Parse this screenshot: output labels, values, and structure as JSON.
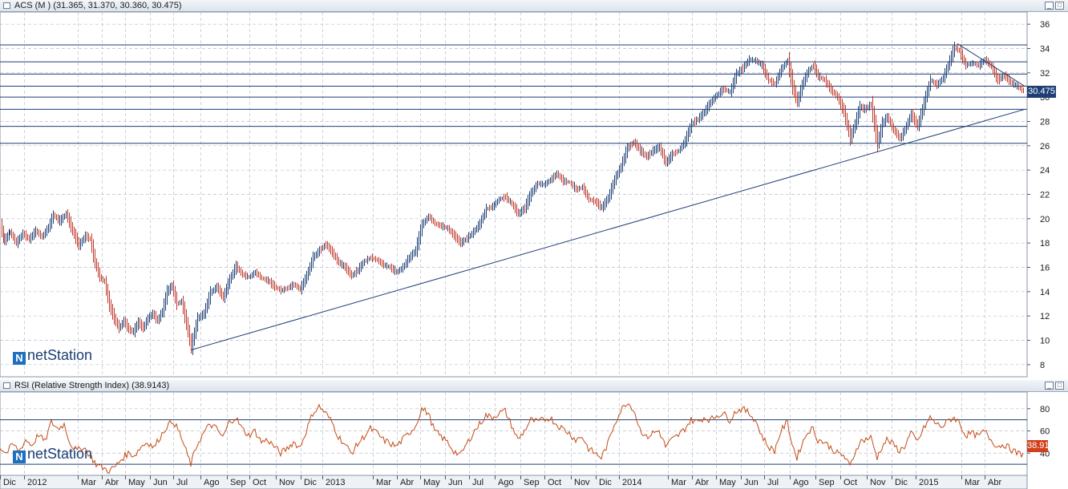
{
  "price_panel": {
    "title": "ACS (M ) (31.365, 31.370, 30.360, 30.475)",
    "last_value": "30.475"
  },
  "rsi_panel": {
    "title": "RSI (Relative Strength Index) (38.9143)",
    "last_value": "38.91"
  },
  "logo": {
    "icon": "N",
    "text": "netStation"
  },
  "window_buttons": {
    "minimize": "_",
    "maximize": "□"
  },
  "colors": {
    "price_up": "#1d3f75",
    "price_down": "#c0392b",
    "rsi_line": "#c44b15",
    "trendline": "#1d3f75",
    "grid": "#b8c0ca",
    "panel_title_bg": "#dbe3ec"
  },
  "chart_data": [
    {
      "type": "bar",
      "subtype": "ohlc",
      "series_name": "ACS",
      "y_ticks": [
        8,
        10,
        12,
        14,
        16,
        18,
        20,
        22,
        24,
        26,
        28,
        30,
        32,
        34,
        36
      ],
      "ylim": [
        7,
        37
      ],
      "grid": true,
      "x_ticks": [
        "Dic",
        "2012",
        "Mar",
        "Abr",
        "May",
        "Jun",
        "Jul",
        "Ago",
        "Sep",
        "Oct",
        "Nov",
        "Dic",
        "2013",
        "Mar",
        "Abr",
        "May",
        "Jun",
        "Jul",
        "Ago",
        "Sep",
        "Oct",
        "Nov",
        "Dic",
        "2014",
        "Mar",
        "Abr",
        "May",
        "Jun",
        "Jul",
        "Ago",
        "Sep",
        "Oct",
        "Nov",
        "Dic",
        "2015",
        "Mar",
        "Abr"
      ],
      "path_points": [
        [
          0,
          19.5
        ],
        [
          5,
          18.2
        ],
        [
          12,
          18.9
        ],
        [
          20,
          18.0
        ],
        [
          28,
          18.8
        ],
        [
          36,
          18.3
        ],
        [
          44,
          19.0
        ],
        [
          52,
          18.5
        ],
        [
          60,
          19.3
        ],
        [
          66,
          20.3
        ],
        [
          74,
          19.8
        ],
        [
          82,
          20.4
        ],
        [
          90,
          19.0
        ],
        [
          98,
          17.8
        ],
        [
          106,
          18.6
        ],
        [
          112,
          18.3
        ],
        [
          118,
          16.4
        ],
        [
          124,
          15.2
        ],
        [
          130,
          14.8
        ],
        [
          136,
          12.9
        ],
        [
          142,
          11.8
        ],
        [
          148,
          11.0
        ],
        [
          154,
          11.6
        ],
        [
          160,
          10.9
        ],
        [
          166,
          10.7
        ],
        [
          172,
          11.5
        ],
        [
          178,
          11.0
        ],
        [
          184,
          11.8
        ],
        [
          190,
          12.2
        ],
        [
          196,
          11.6
        ],
        [
          202,
          12.4
        ],
        [
          208,
          14.0
        ],
        [
          214,
          14.5
        ],
        [
          220,
          13.0
        ],
        [
          226,
          13.2
        ],
        [
          232,
          11.4
        ],
        [
          238,
          9.4
        ],
        [
          246,
          11.8
        ],
        [
          254,
          12.2
        ],
        [
          262,
          13.9
        ],
        [
          270,
          14.4
        ],
        [
          278,
          13.5
        ],
        [
          286,
          15.0
        ],
        [
          294,
          16.1
        ],
        [
          302,
          15.4
        ],
        [
          310,
          15.2
        ],
        [
          318,
          15.6
        ],
        [
          326,
          15.1
        ],
        [
          334,
          14.9
        ],
        [
          342,
          14.4
        ],
        [
          350,
          14.1
        ],
        [
          358,
          14.3
        ],
        [
          366,
          14.6
        ],
        [
          374,
          14.2
        ],
        [
          382,
          15.3
        ],
        [
          390,
          16.8
        ],
        [
          398,
          17.4
        ],
        [
          406,
          17.9
        ],
        [
          414,
          17.2
        ],
        [
          422,
          16.4
        ],
        [
          430,
          16.0
        ],
        [
          438,
          15.3
        ],
        [
          446,
          15.8
        ],
        [
          454,
          16.5
        ],
        [
          462,
          16.8
        ],
        [
          470,
          16.6
        ],
        [
          478,
          16.2
        ],
        [
          486,
          16.0
        ],
        [
          494,
          15.6
        ],
        [
          502,
          16.0
        ],
        [
          510,
          16.8
        ],
        [
          518,
          17.4
        ],
        [
          526,
          19.5
        ],
        [
          534,
          20.2
        ],
        [
          542,
          19.6
        ],
        [
          550,
          19.4
        ],
        [
          558,
          19.2
        ],
        [
          566,
          18.6
        ],
        [
          574,
          18.0
        ],
        [
          582,
          18.4
        ],
        [
          590,
          18.9
        ],
        [
          598,
          19.6
        ],
        [
          606,
          20.8
        ],
        [
          614,
          21.0
        ],
        [
          622,
          21.6
        ],
        [
          630,
          21.8
        ],
        [
          638,
          21.2
        ],
        [
          646,
          20.4
        ],
        [
          654,
          20.9
        ],
        [
          662,
          22.1
        ],
        [
          670,
          22.9
        ],
        [
          678,
          22.8
        ],
        [
          686,
          23.2
        ],
        [
          694,
          23.7
        ],
        [
          702,
          23.1
        ],
        [
          710,
          23.0
        ],
        [
          718,
          22.4
        ],
        [
          726,
          22.6
        ],
        [
          734,
          21.6
        ],
        [
          742,
          21.4
        ],
        [
          750,
          20.9
        ],
        [
          758,
          21.7
        ],
        [
          766,
          23.2
        ],
        [
          774,
          24.3
        ],
        [
          782,
          25.8
        ],
        [
          790,
          26.3
        ],
        [
          798,
          25.6
        ],
        [
          806,
          25.1
        ],
        [
          814,
          25.6
        ],
        [
          822,
          25.9
        ],
        [
          830,
          24.6
        ],
        [
          838,
          25.3
        ],
        [
          846,
          25.6
        ],
        [
          854,
          26.4
        ],
        [
          862,
          27.8
        ],
        [
          870,
          28.2
        ],
        [
          878,
          28.8
        ],
        [
          886,
          29.6
        ],
        [
          894,
          30.2
        ],
        [
          902,
          30.7
        ],
        [
          910,
          30.4
        ],
        [
          918,
          31.9
        ],
        [
          926,
          32.4
        ],
        [
          934,
          33.1
        ],
        [
          942,
          33.0
        ],
        [
          950,
          32.6
        ],
        [
          958,
          31.4
        ],
        [
          966,
          31.1
        ],
        [
          974,
          32.3
        ],
        [
          982,
          33.0
        ],
        [
          988,
          30.9
        ],
        [
          994,
          29.6
        ],
        [
          1000,
          31.0
        ],
        [
          1008,
          32.2
        ],
        [
          1014,
          32.6
        ],
        [
          1020,
          31.7
        ],
        [
          1028,
          31.4
        ],
        [
          1036,
          30.6
        ],
        [
          1044,
          30.0
        ],
        [
          1052,
          28.8
        ],
        [
          1060,
          26.6
        ],
        [
          1066,
          27.8
        ],
        [
          1072,
          29.2
        ],
        [
          1078,
          29.0
        ],
        [
          1086,
          29.4
        ],
        [
          1094,
          26.2
        ],
        [
          1100,
          27.8
        ],
        [
          1106,
          28.4
        ],
        [
          1114,
          27.3
        ],
        [
          1122,
          26.6
        ],
        [
          1128,
          27.3
        ],
        [
          1136,
          28.6
        ],
        [
          1144,
          27.6
        ],
        [
          1152,
          29.5
        ],
        [
          1160,
          31.4
        ],
        [
          1168,
          31.0
        ],
        [
          1176,
          31.6
        ],
        [
          1184,
          33.0
        ],
        [
          1190,
          34.1
        ],
        [
          1196,
          33.8
        ],
        [
          1204,
          32.6
        ],
        [
          1212,
          32.8
        ],
        [
          1220,
          32.6
        ],
        [
          1228,
          33.1
        ],
        [
          1236,
          32.5
        ],
        [
          1244,
          31.4
        ],
        [
          1252,
          31.8
        ],
        [
          1260,
          31.2
        ],
        [
          1268,
          30.9
        ],
        [
          1276,
          30.5
        ]
      ],
      "horizontal_levels": [
        34.3,
        32.9,
        31.9,
        30.9,
        30.0,
        29.0,
        27.6,
        26.2
      ],
      "trendlines": [
        {
          "from": [
            238,
            9.2
          ],
          "to": [
            1278,
            29.0
          ]
        },
        {
          "from": [
            1194,
            34.4
          ],
          "to": [
            1278,
            30.9
          ]
        }
      ]
    },
    {
      "type": "line",
      "series_name": "RSI",
      "y_ticks": [
        40,
        60,
        80
      ],
      "ylim": [
        20,
        95
      ],
      "grid": true,
      "levels": [
        30,
        70
      ],
      "path_points": [
        [
          0,
          45
        ],
        [
          8,
          40
        ],
        [
          16,
          48
        ],
        [
          24,
          42
        ],
        [
          32,
          52
        ],
        [
          40,
          47
        ],
        [
          48,
          57
        ],
        [
          56,
          50
        ],
        [
          64,
          68
        ],
        [
          72,
          62
        ],
        [
          80,
          66
        ],
        [
          88,
          48
        ],
        [
          96,
          42
        ],
        [
          104,
          46
        ],
        [
          112,
          38
        ],
        [
          120,
          30
        ],
        [
          128,
          27
        ],
        [
          136,
          24
        ],
        [
          144,
          28
        ],
        [
          152,
          35
        ],
        [
          160,
          40
        ],
        [
          168,
          38
        ],
        [
          176,
          46
        ],
        [
          184,
          50
        ],
        [
          192,
          45
        ],
        [
          200,
          55
        ],
        [
          208,
          64
        ],
        [
          216,
          69
        ],
        [
          224,
          58
        ],
        [
          232,
          42
        ],
        [
          238,
          30
        ],
        [
          246,
          48
        ],
        [
          254,
          58
        ],
        [
          262,
          66
        ],
        [
          270,
          62
        ],
        [
          278,
          54
        ],
        [
          286,
          68
        ],
        [
          294,
          72
        ],
        [
          302,
          62
        ],
        [
          310,
          56
        ],
        [
          318,
          60
        ],
        [
          326,
          50
        ],
        [
          334,
          52
        ],
        [
          342,
          46
        ],
        [
          350,
          40
        ],
        [
          358,
          44
        ],
        [
          366,
          50
        ],
        [
          374,
          45
        ],
        [
          382,
          60
        ],
        [
          390,
          76
        ],
        [
          398,
          82
        ],
        [
          406,
          76
        ],
        [
          414,
          68
        ],
        [
          422,
          55
        ],
        [
          430,
          48
        ],
        [
          438,
          40
        ],
        [
          446,
          48
        ],
        [
          454,
          55
        ],
        [
          462,
          62
        ],
        [
          470,
          58
        ],
        [
          478,
          52
        ],
        [
          486,
          49
        ],
        [
          494,
          46
        ],
        [
          502,
          52
        ],
        [
          510,
          58
        ],
        [
          518,
          64
        ],
        [
          526,
          80
        ],
        [
          534,
          76
        ],
        [
          542,
          60
        ],
        [
          550,
          55
        ],
        [
          558,
          50
        ],
        [
          566,
          42
        ],
        [
          574,
          38
        ],
        [
          582,
          48
        ],
        [
          590,
          58
        ],
        [
          598,
          66
        ],
        [
          606,
          74
        ],
        [
          614,
          72
        ],
        [
          622,
          76
        ],
        [
          630,
          78
        ],
        [
          638,
          65
        ],
        [
          646,
          52
        ],
        [
          654,
          60
        ],
        [
          662,
          70
        ],
        [
          670,
          68
        ],
        [
          678,
          70
        ],
        [
          686,
          72
        ],
        [
          694,
          66
        ],
        [
          702,
          62
        ],
        [
          710,
          58
        ],
        [
          718,
          52
        ],
        [
          726,
          55
        ],
        [
          734,
          44
        ],
        [
          742,
          40
        ],
        [
          750,
          36
        ],
        [
          758,
          48
        ],
        [
          766,
          66
        ],
        [
          774,
          78
        ],
        [
          782,
          86
        ],
        [
          790,
          80
        ],
        [
          798,
          62
        ],
        [
          806,
          54
        ],
        [
          814,
          58
        ],
        [
          822,
          60
        ],
        [
          830,
          46
        ],
        [
          838,
          52
        ],
        [
          846,
          56
        ],
        [
          854,
          62
        ],
        [
          862,
          70
        ],
        [
          870,
          68
        ],
        [
          878,
          72
        ],
        [
          886,
          70
        ],
        [
          894,
          74
        ],
        [
          902,
          76
        ],
        [
          910,
          70
        ],
        [
          918,
          78
        ],
        [
          926,
          80
        ],
        [
          934,
          76
        ],
        [
          942,
          70
        ],
        [
          950,
          56
        ],
        [
          958,
          46
        ],
        [
          966,
          42
        ],
        [
          974,
          60
        ],
        [
          982,
          68
        ],
        [
          988,
          48
        ],
        [
          994,
          36
        ],
        [
          1000,
          48
        ],
        [
          1008,
          60
        ],
        [
          1014,
          62
        ],
        [
          1020,
          52
        ],
        [
          1028,
          50
        ],
        [
          1036,
          45
        ],
        [
          1044,
          40
        ],
        [
          1052,
          38
        ],
        [
          1060,
          28
        ],
        [
          1066,
          40
        ],
        [
          1072,
          50
        ],
        [
          1078,
          52
        ],
        [
          1086,
          54
        ],
        [
          1094,
          36
        ],
        [
          1100,
          46
        ],
        [
          1106,
          52
        ],
        [
          1114,
          48
        ],
        [
          1122,
          42
        ],
        [
          1128,
          46
        ],
        [
          1136,
          58
        ],
        [
          1144,
          50
        ],
        [
          1152,
          62
        ],
        [
          1160,
          72
        ],
        [
          1168,
          66
        ],
        [
          1176,
          64
        ],
        [
          1184,
          70
        ],
        [
          1190,
          72
        ],
        [
          1196,
          68
        ],
        [
          1204,
          56
        ],
        [
          1212,
          58
        ],
        [
          1220,
          55
        ],
        [
          1228,
          60
        ],
        [
          1236,
          52
        ],
        [
          1244,
          46
        ],
        [
          1252,
          48
        ],
        [
          1260,
          44
        ],
        [
          1268,
          40
        ],
        [
          1276,
          39
        ]
      ]
    }
  ]
}
